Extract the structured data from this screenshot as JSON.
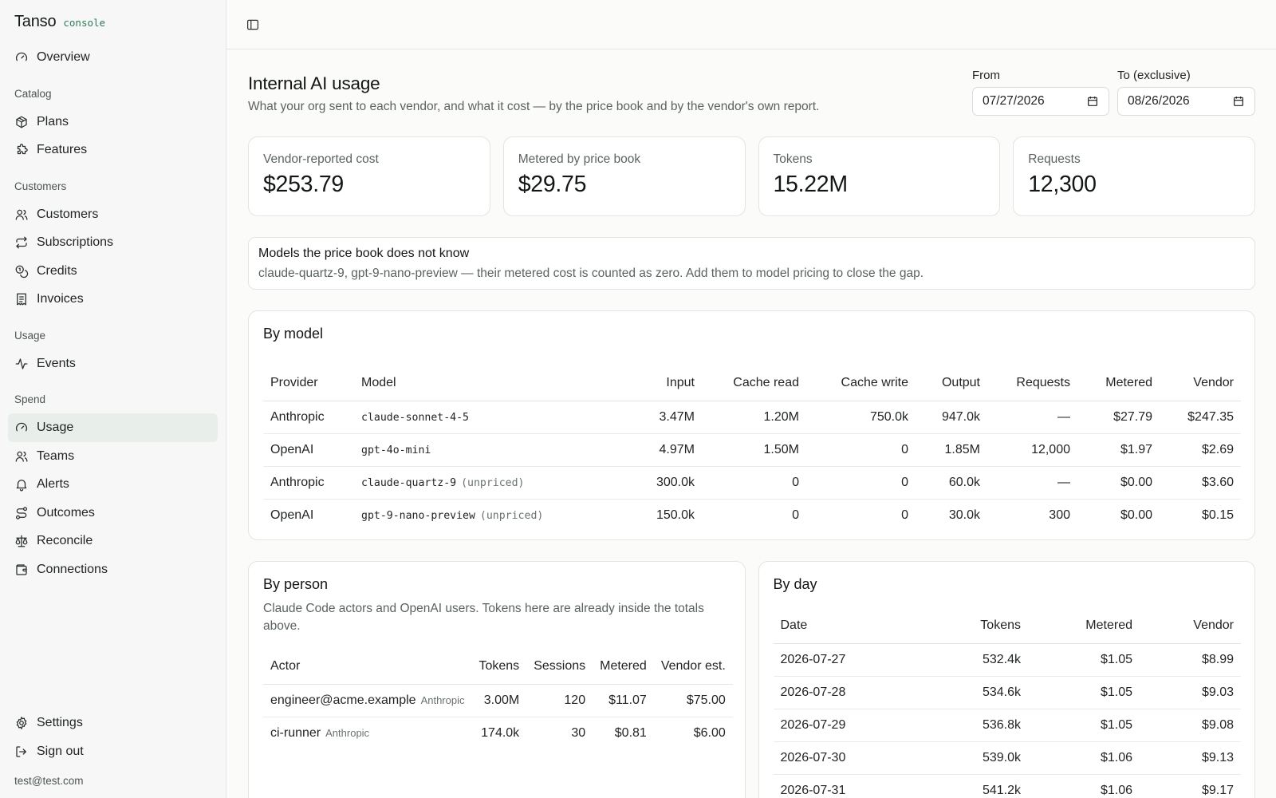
{
  "brand": {
    "name": "Tanso",
    "tag": "console"
  },
  "sidebar": {
    "overview": "Overview",
    "sections": {
      "catalog": "Catalog",
      "customers": "Customers",
      "usage": "Usage",
      "spend": "Spend"
    },
    "catalog": {
      "plans": "Plans",
      "features": "Features"
    },
    "customers": {
      "customers": "Customers",
      "subscriptions": "Subscriptions",
      "credits": "Credits",
      "invoices": "Invoices"
    },
    "usage": {
      "events": "Events"
    },
    "spend": {
      "usage": "Usage",
      "teams": "Teams",
      "alerts": "Alerts",
      "outcomes": "Outcomes",
      "reconcile": "Reconcile",
      "connections": "Connections"
    },
    "bottom": {
      "settings": "Settings",
      "sign_out": "Sign out",
      "email": "test@test.com"
    }
  },
  "page": {
    "title": "Internal AI usage",
    "subtitle": "What your org sent to each vendor, and what it cost — by the price book and by the vendor's own report.",
    "from_label": "From",
    "from_value": "07/27/2026",
    "to_label": "To (exclusive)",
    "to_value": "08/26/2026"
  },
  "stats": {
    "vendor_cost": {
      "label": "Vendor-reported cost",
      "value": "$253.79"
    },
    "metered": {
      "label": "Metered by price book",
      "value": "$29.75"
    },
    "tokens": {
      "label": "Tokens",
      "value": "15.22M"
    },
    "requests": {
      "label": "Requests",
      "value": "12,300"
    }
  },
  "notice": {
    "title": "Models the price book does not know",
    "body": "claude-quartz-9, gpt-9-nano-preview — their metered cost is counted as zero. Add them to model pricing to close the gap."
  },
  "by_model": {
    "title": "By model",
    "headers": {
      "provider": "Provider",
      "model": "Model",
      "input": "Input",
      "cache_read": "Cache read",
      "cache_write": "Cache write",
      "output": "Output",
      "requests": "Requests",
      "metered": "Metered",
      "vendor": "Vendor"
    },
    "rows": [
      {
        "provider": "Anthropic",
        "model": "claude-sonnet-4-5",
        "tag": "",
        "input": "3.47M",
        "cache_read": "1.20M",
        "cache_write": "750.0k",
        "output": "947.0k",
        "requests": "—",
        "metered": "$27.79",
        "vendor": "$247.35"
      },
      {
        "provider": "OpenAI",
        "model": "gpt-4o-mini",
        "tag": "",
        "input": "4.97M",
        "cache_read": "1.50M",
        "cache_write": "0",
        "output": "1.85M",
        "requests": "12,000",
        "metered": "$1.97",
        "vendor": "$2.69"
      },
      {
        "provider": "Anthropic",
        "model": "claude-quartz-9",
        "tag": "(unpriced)",
        "input": "300.0k",
        "cache_read": "0",
        "cache_write": "0",
        "output": "60.0k",
        "requests": "—",
        "metered": "$0.00",
        "vendor": "$3.60"
      },
      {
        "provider": "OpenAI",
        "model": "gpt-9-nano-preview",
        "tag": "(unpriced)",
        "input": "150.0k",
        "cache_read": "0",
        "cache_write": "0",
        "output": "30.0k",
        "requests": "300",
        "metered": "$0.00",
        "vendor": "$0.15"
      }
    ]
  },
  "by_person": {
    "title": "By person",
    "subtitle": "Claude Code actors and OpenAI users. Tokens here are already inside the totals above.",
    "headers": {
      "actor": "Actor",
      "tokens": "Tokens",
      "sessions": "Sessions",
      "metered": "Metered",
      "vendor_est": "Vendor est."
    },
    "rows": [
      {
        "actor": "engineer@acme.example",
        "provider": "Anthropic",
        "tokens": "3.00M",
        "sessions": "120",
        "metered": "$11.07",
        "vendor_est": "$75.00"
      },
      {
        "actor": "ci-runner",
        "provider": "Anthropic",
        "tokens": "174.0k",
        "sessions": "30",
        "metered": "$0.81",
        "vendor_est": "$6.00"
      }
    ]
  },
  "by_day": {
    "title": "By day",
    "headers": {
      "date": "Date",
      "tokens": "Tokens",
      "metered": "Metered",
      "vendor": "Vendor"
    },
    "rows": [
      {
        "date": "2026-07-27",
        "tokens": "532.4k",
        "metered": "$1.05",
        "vendor": "$8.99"
      },
      {
        "date": "2026-07-28",
        "tokens": "534.6k",
        "metered": "$1.05",
        "vendor": "$9.03"
      },
      {
        "date": "2026-07-29",
        "tokens": "536.8k",
        "metered": "$1.05",
        "vendor": "$9.08"
      },
      {
        "date": "2026-07-30",
        "tokens": "539.0k",
        "metered": "$1.06",
        "vendor": "$9.13"
      },
      {
        "date": "2026-07-31",
        "tokens": "541.2k",
        "metered": "$1.06",
        "vendor": "$9.17"
      }
    ]
  }
}
